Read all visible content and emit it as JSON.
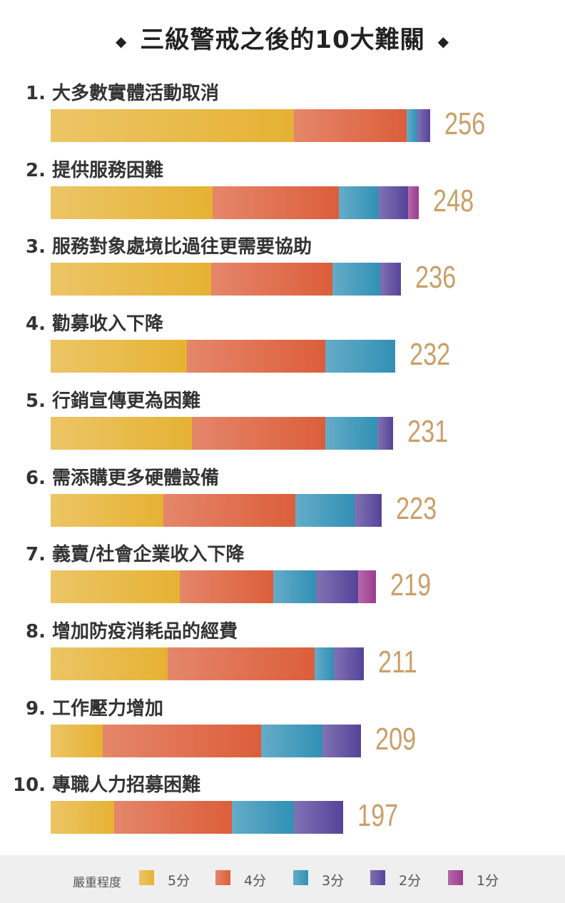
{
  "chart_data": {
    "type": "bar",
    "orientation": "horizontal",
    "stacked": true,
    "title": "三級警戒之後的10大難關",
    "categories": [
      "1. 大多數實體活動取消",
      "2. 提供服務困難",
      "3. 服務對象處境比過往更需要協助",
      "4. 勸募收入下降",
      "5. 行銷宣傳更為困難",
      "6. 需添購更多硬體設備",
      "7. 義賣/社會企業收入下降",
      "8. 增加防疫消耗品的經費",
      "9. 工作壓力增加",
      "10. 專職人力招募困難"
    ],
    "totals": [
      256,
      248,
      236,
      232,
      231,
      223,
      219,
      211,
      209,
      197
    ],
    "series": [
      {
        "name": "5分",
        "color": "#e6b233",
        "values": [
          164,
          109,
          108,
          92,
          95,
          76,
          87,
          79,
          35,
          43
        ]
      },
      {
        "name": "4分",
        "color": "#dc5e3a",
        "values": [
          76,
          85,
          82,
          93,
          90,
          89,
          63,
          99,
          107,
          79
        ]
      },
      {
        "name": "3分",
        "color": "#3190b5",
        "values": [
          7,
          27,
          32,
          47,
          35,
          40,
          29,
          13,
          41,
          42
        ]
      },
      {
        "name": "2分",
        "color": "#55439a",
        "values": [
          9,
          20,
          14,
          0,
          11,
          18,
          28,
          20,
          26,
          33
        ]
      },
      {
        "name": "1分",
        "color": "#9c3a8e",
        "values": [
          0,
          7,
          0,
          0,
          0,
          0,
          12,
          0,
          0,
          0
        ]
      }
    ],
    "legend_title": "嚴重程度",
    "legend_position": "bottom",
    "grid": false
  }
}
